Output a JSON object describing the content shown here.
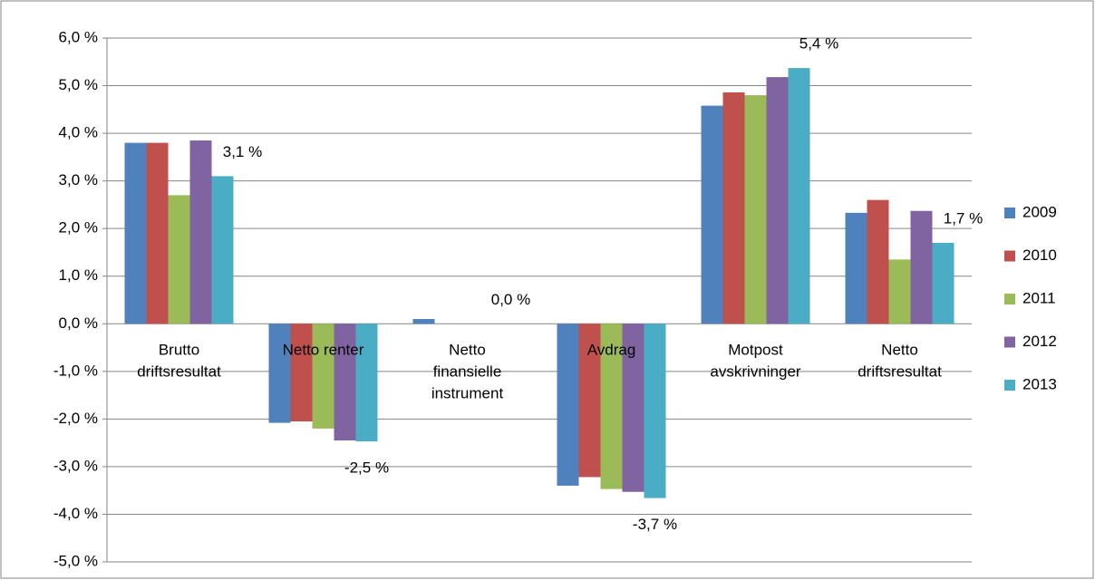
{
  "chart_data": {
    "type": "bar",
    "categories": [
      "Brutto driftsresultat",
      "Netto renter",
      "Netto finansielle instrument",
      "Avdrag",
      "Motpost avskrivninger",
      "Netto driftsresultat"
    ],
    "series": [
      {
        "name": "2009",
        "color": "#4f81bd",
        "values": [
          3.8,
          -2.08,
          0.1,
          -3.4,
          4.58,
          2.33
        ]
      },
      {
        "name": "2010",
        "color": "#c0504d",
        "values": [
          3.8,
          -2.05,
          0,
          -3.22,
          4.86,
          2.6
        ]
      },
      {
        "name": "2011",
        "color": "#9bbb59",
        "values": [
          2.7,
          -2.2,
          0,
          -3.47,
          4.8,
          1.35
        ]
      },
      {
        "name": "2012",
        "color": "#8064a2",
        "values": [
          3.85,
          -2.45,
          0,
          -3.53,
          5.18,
          2.37
        ]
      },
      {
        "name": "2013",
        "color": "#4bacc6",
        "values": [
          3.1,
          -2.47,
          0,
          -3.66,
          5.37,
          1.7
        ],
        "value_labels": [
          "3,1 %",
          "-2,5 %",
          "0,0 %",
          "-3,7 %",
          "5,4 %",
          "1,7 %"
        ]
      }
    ],
    "ylim": [
      -5,
      6
    ],
    "yticks": [
      {
        "value": -5,
        "label": "-5,0 %"
      },
      {
        "value": -4,
        "label": "-4,0 %"
      },
      {
        "value": -3,
        "label": "-3,0 %"
      },
      {
        "value": -2,
        "label": "-2,0 %"
      },
      {
        "value": -1,
        "label": "-1,0 %"
      },
      {
        "value": 0,
        "label": "0,0 %"
      },
      {
        "value": 1,
        "label": "1,0 %"
      },
      {
        "value": 2,
        "label": "2,0 %"
      },
      {
        "value": 3,
        "label": "3,0 %"
      },
      {
        "value": 4,
        "label": "4,0 %"
      },
      {
        "value": 5,
        "label": "5,0 %"
      },
      {
        "value": 6,
        "label": "6,0 %"
      }
    ],
    "grid": true,
    "legend": "right"
  }
}
